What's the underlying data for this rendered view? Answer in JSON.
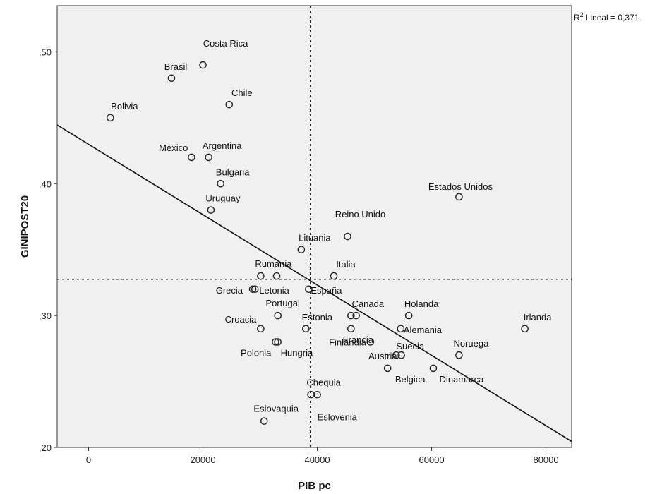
{
  "chart_data": {
    "type": "scatter",
    "xlabel": "PIB pc",
    "ylabel": "GINIPOST20",
    "xlim": [
      -5500,
      84500
    ],
    "ylim": [
      0.2,
      0.535
    ],
    "x_ticks": [
      0,
      20000,
      40000,
      60000,
      80000
    ],
    "x_tick_labels": [
      "0",
      "20000",
      "40000",
      "60000",
      "80000"
    ],
    "y_ticks": [
      0.2,
      0.3,
      0.4,
      0.5
    ],
    "y_tick_labels": [
      ",20",
      ",30",
      ",40",
      ",50"
    ],
    "grid": false,
    "background_color": "#f0f0f0",
    "reference_lines": {
      "x": 38800,
      "y": 0.3275
    },
    "fit_line": {
      "x_start": -5500,
      "y_start": 0.4445,
      "x_end": 84500,
      "y_end": 0.2045
    },
    "r2_label": "Lineal = 0,371",
    "r2_prefix": "R",
    "r2_sup": "2",
    "points": [
      {
        "label": "Costa Rica",
        "x": 20000,
        "y": 0.49
      },
      {
        "label": "Brasil",
        "x": 14500,
        "y": 0.48
      },
      {
        "label": "Chile",
        "x": 24600,
        "y": 0.46
      },
      {
        "label": "Bolivia",
        "x": 3800,
        "y": 0.45
      },
      {
        "label": "Mexico",
        "x": 18000,
        "y": 0.42
      },
      {
        "label": "Argentina",
        "x": 21000,
        "y": 0.42
      },
      {
        "label": "Bulgaria",
        "x": 23100,
        "y": 0.4
      },
      {
        "label": "Uruguay",
        "x": 21400,
        "y": 0.38
      },
      {
        "label": "Estados Unidos",
        "x": 64800,
        "y": 0.39
      },
      {
        "label": "Reino Unido",
        "x": 45300,
        "y": 0.36
      },
      {
        "label": "Lituania",
        "x": 37200,
        "y": 0.35
      },
      {
        "label": "Rumania",
        "x": 30100,
        "y": 0.33
      },
      {
        "label": "Italia",
        "x": 42900,
        "y": 0.33
      },
      {
        "label": "",
        "x": 32900,
        "y": 0.33
      },
      {
        "label": "Grecia",
        "x": 28700,
        "y": 0.32
      },
      {
        "label": "Letonia",
        "x": 29100,
        "y": 0.32
      },
      {
        "label": "España",
        "x": 38500,
        "y": 0.32
      },
      {
        "label": "Portugal",
        "x": 33100,
        "y": 0.3
      },
      {
        "label": "Canada",
        "x": 45900,
        "y": 0.3
      },
      {
        "label": "",
        "x": 46800,
        "y": 0.3
      },
      {
        "label": "Holanda",
        "x": 56000,
        "y": 0.3
      },
      {
        "label": "Irlanda",
        "x": 76300,
        "y": 0.29
      },
      {
        "label": "Croacia",
        "x": 30100,
        "y": 0.29
      },
      {
        "label": "Estonia",
        "x": 38000,
        "y": 0.29
      },
      {
        "label": "Francia",
        "x": 45900,
        "y": 0.29
      },
      {
        "label": "Alemania",
        "x": 54600,
        "y": 0.29
      },
      {
        "label": "Polonia",
        "x": 32700,
        "y": 0.28
      },
      {
        "label": "Hungria",
        "x": 33100,
        "y": 0.28
      },
      {
        "label": "Finlandia",
        "x": 49300,
        "y": 0.28
      },
      {
        "label": "Suecia",
        "x": 53800,
        "y": 0.27
      },
      {
        "label": "Austria",
        "x": 54700,
        "y": 0.27
      },
      {
        "label": "Noruega",
        "x": 64800,
        "y": 0.27
      },
      {
        "label": "Belgica",
        "x": 52300,
        "y": 0.26
      },
      {
        "label": "Dinamarca",
        "x": 60300,
        "y": 0.26
      },
      {
        "label": "Chequia",
        "x": 38900,
        "y": 0.24
      },
      {
        "label": "Eslovenia",
        "x": 40000,
        "y": 0.24
      },
      {
        "label": "Eslovaquia",
        "x": 30700,
        "y": 0.22
      }
    ]
  }
}
